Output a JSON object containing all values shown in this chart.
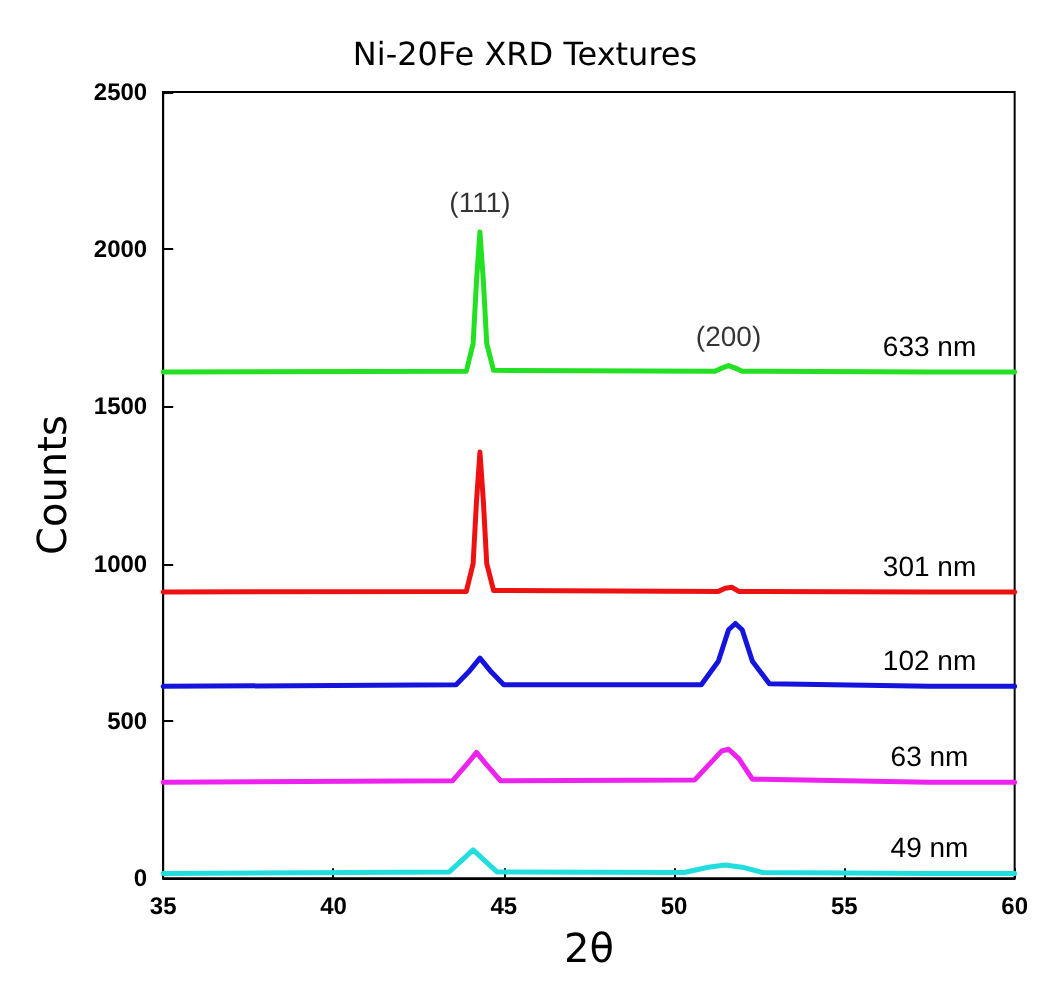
{
  "chart_data": {
    "type": "line",
    "title": "Ni-20Fe XRD Textures",
    "xlabel": "2θ",
    "ylabel": "Counts",
    "xlim": [
      35,
      60
    ],
    "xticks": [
      35,
      40,
      45,
      50,
      55,
      60
    ],
    "ylim": [
      0,
      2500
    ],
    "yticks": [
      0,
      500,
      1000,
      1500,
      2000,
      2500
    ],
    "grid": false,
    "legend": false,
    "line_style": "solid",
    "annotations": [
      {
        "text": "(111)",
        "x": 44.3,
        "y": 2055
      },
      {
        "text": "(200)",
        "x": 51.6,
        "y": 1630
      }
    ],
    "series": [
      {
        "name": "633 nm",
        "color": "#22e022",
        "x": [
          35,
          43.9,
          44.1,
          44.2,
          44.3,
          44.4,
          44.5,
          44.7,
          51.2,
          51.4,
          51.6,
          51.8,
          52.0,
          57.5,
          60
        ],
        "values": [
          1610,
          1612,
          1700,
          1900,
          2055,
          1900,
          1700,
          1615,
          1612,
          1622,
          1630,
          1622,
          1612,
          1610,
          1610
        ]
      },
      {
        "name": "301 nm",
        "color": "#ee1111",
        "x": [
          35,
          43.9,
          44.1,
          44.2,
          44.3,
          44.4,
          44.5,
          44.7,
          51.3,
          51.5,
          51.7,
          51.9,
          57.5,
          60
        ],
        "values": [
          910,
          912,
          1000,
          1200,
          1355,
          1200,
          1000,
          915,
          912,
          922,
          925,
          912,
          910,
          910
        ]
      },
      {
        "name": "102 nm",
        "color": "#1414dd",
        "x": [
          35,
          43.6,
          44.0,
          44.3,
          44.6,
          45.0,
          50.8,
          51.3,
          51.6,
          51.8,
          52.0,
          52.3,
          52.8,
          57.5,
          60
        ],
        "values": [
          610,
          615,
          660,
          700,
          660,
          615,
          615,
          690,
          790,
          810,
          790,
          690,
          618,
          610,
          610
        ]
      },
      {
        "name": "63 nm",
        "color": "#ee22ee",
        "x": [
          35,
          43.5,
          43.9,
          44.2,
          44.5,
          44.9,
          50.6,
          51.1,
          51.4,
          51.6,
          51.9,
          52.3,
          57.5,
          60
        ],
        "values": [
          305,
          310,
          360,
          400,
          360,
          310,
          312,
          370,
          405,
          410,
          380,
          315,
          305,
          305
        ]
      },
      {
        "name": "49 nm",
        "color": "#22dddd",
        "x": [
          35,
          43.4,
          43.8,
          44.1,
          44.4,
          44.8,
          50.3,
          51.0,
          51.5,
          52.0,
          52.6,
          57.5,
          60
        ],
        "values": [
          15,
          20,
          60,
          90,
          60,
          20,
          18,
          35,
          42,
          35,
          18,
          15,
          15
        ]
      }
    ]
  }
}
